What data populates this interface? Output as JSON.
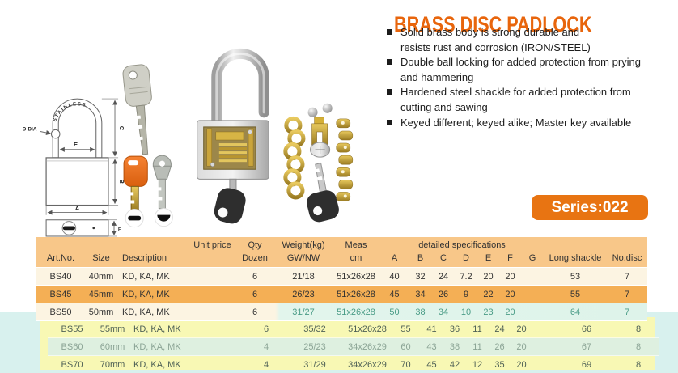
{
  "title": "BRASS DISC PADLOCK",
  "features": [
    [
      "Solid brass body is strong durable and",
      "resists rust and corrosion (IRON/STEEL)"
    ],
    [
      "Double ball locking for added protection from prying",
      "and hammering"
    ],
    [
      "Hardened steel shackle for added protection from",
      "cutting and sawing"
    ],
    [
      "Keyed different; keyed alike; Master key available"
    ]
  ],
  "series_badge": "Series:022",
  "diagram": {
    "stainless": "STAINLESS",
    "d_dia": "D-DIA",
    "dim_a": "A",
    "dim_b": "B",
    "dim_c": "C",
    "dim_e": "E",
    "dim_f": "F"
  },
  "colors": {
    "accent_orange": "#e8650c",
    "badge_orange": "#e87412",
    "table_header_bg": "#f8c789",
    "row_orange": "#f4af55",
    "row_cream": "#fcf4e2",
    "row_yellow": "#f8f8b4",
    "row_mint": "#def0e0",
    "panel_cyan": "#d8f1ee",
    "teal_text": "#4a9c86"
  },
  "table": {
    "header": {
      "art_no": "Art.No.",
      "size": "Size",
      "description": "Description",
      "unit_price": "Unit price",
      "qty_line1": "Qty",
      "qty_line2": "Dozen",
      "weight_line1": "Weight(kg)",
      "weight_line2": "GW/NW",
      "meas_line1": "Meas",
      "meas_line2": "cm",
      "detailed": "detailed specifications",
      "detail_cols": [
        "A",
        "B",
        "C",
        "D",
        "E",
        "F",
        "G"
      ],
      "long_shackle": "Long shackle",
      "no_disc": "No.disc"
    },
    "rows": [
      {
        "art": "BS40",
        "size": "40mm",
        "desc": "KD, KA, MK",
        "unit": "",
        "qty": "6",
        "weight": "21/18",
        "meas": "51x26x28",
        "A": "40",
        "B": "32",
        "C": "24",
        "D": "7.2",
        "E": "20",
        "F": "20",
        "G": "",
        "long": "53",
        "disc": "7",
        "style": "cream"
      },
      {
        "art": "BS45",
        "size": "45mm",
        "desc": "KD, KA, MK",
        "unit": "",
        "qty": "6",
        "weight": "26/23",
        "meas": "51x26x28",
        "A": "45",
        "B": "34",
        "C": "26",
        "D": "9",
        "E": "22",
        "F": "20",
        "G": "",
        "long": "55",
        "disc": "7",
        "style": "orange"
      },
      {
        "art": "BS50",
        "size": "50mm",
        "desc": "KD, KA, MK",
        "unit": "",
        "qty": "6",
        "weight": "31/27",
        "meas": "51x26x28",
        "A": "50",
        "B": "38",
        "C": "34",
        "D": "10",
        "E": "23",
        "F": "20",
        "G": "",
        "long": "64",
        "disc": "7",
        "style": "cream-teal"
      },
      {
        "art": "BS55",
        "size": "55mm",
        "desc": "KD, KA, MK",
        "unit": "",
        "qty": "6",
        "weight": "35/32",
        "meas": "51x26x28",
        "A": "55",
        "B": "41",
        "C": "36",
        "D": "11",
        "E": "24",
        "F": "20",
        "G": "",
        "long": "66",
        "disc": "8",
        "style": "yellow"
      },
      {
        "art": "BS60",
        "size": "60mm",
        "desc": "KD, KA, MK",
        "unit": "",
        "qty": "4",
        "weight": "25/23",
        "meas": "34x26x29",
        "A": "60",
        "B": "43",
        "C": "38",
        "D": "11",
        "E": "26",
        "F": "20",
        "G": "",
        "long": "67",
        "disc": "8",
        "style": "mint"
      },
      {
        "art": "BS70",
        "size": "70mm",
        "desc": "KD, KA, MK",
        "unit": "",
        "qty": "4",
        "weight": "31/29",
        "meas": "34x26x29",
        "A": "70",
        "B": "45",
        "C": "42",
        "D": "12",
        "E": "35",
        "F": "20",
        "G": "",
        "long": "69",
        "disc": "8",
        "style": "yellow"
      }
    ]
  }
}
